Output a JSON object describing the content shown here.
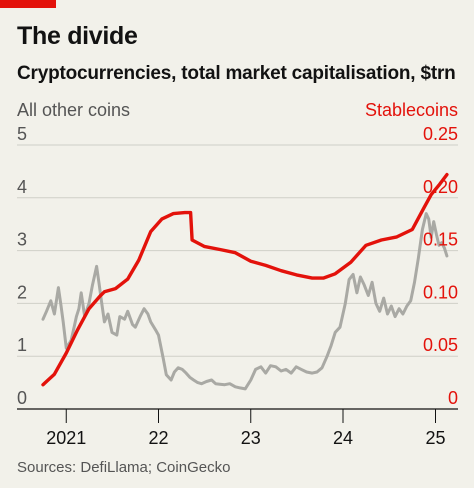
{
  "header": {
    "title": "The divide",
    "subtitle": "Cryptocurrencies, total market capitalisation, $trn"
  },
  "footer": {
    "source": "Sources: DefiLlama; CoinGecko"
  },
  "colors": {
    "stablecoins": "#e3120b",
    "other": "#a9a9a4",
    "flag": "#e3120b",
    "background": "#f2f1ea"
  },
  "chart_data": {
    "type": "line",
    "ylabel_left": "All other coins",
    "ylabel_right": "Stablecoins",
    "ylim_left": [
      0,
      5
    ],
    "ylim_right": [
      0,
      0.25
    ],
    "yticks_left": [
      "0",
      "1",
      "2",
      "3",
      "4",
      "5"
    ],
    "yticks_right": [
      "0",
      "0.05",
      "0.10",
      "0.15",
      "0.20",
      "0.25"
    ],
    "xlim": [
      "2020-10-01",
      "2025-03-31"
    ],
    "xticks": [
      {
        "date": "2021-01-01",
        "label": "2021"
      },
      {
        "date": "2022-01-01",
        "label": "22"
      },
      {
        "date": "2023-01-01",
        "label": "23"
      },
      {
        "date": "2024-01-01",
        "label": "24"
      },
      {
        "date": "2025-01-01",
        "label": "25"
      }
    ],
    "grid": true,
    "series": [
      {
        "name": "Stablecoins",
        "axis": "right",
        "values": [
          [
            "2020-10-01",
            0.023
          ],
          [
            "2020-11-15",
            0.033
          ],
          [
            "2021-01-01",
            0.053
          ],
          [
            "2021-02-15",
            0.075
          ],
          [
            "2021-04-01",
            0.095
          ],
          [
            "2021-05-15",
            0.107
          ],
          [
            "2021-06-01",
            0.111
          ],
          [
            "2021-07-15",
            0.114
          ],
          [
            "2021-09-01",
            0.123
          ],
          [
            "2021-10-15",
            0.141
          ],
          [
            "2021-12-01",
            0.168
          ],
          [
            "2022-01-15",
            0.18
          ],
          [
            "2022-03-01",
            0.185
          ],
          [
            "2022-04-15",
            0.186
          ],
          [
            "2022-05-08",
            0.186
          ],
          [
            "2022-05-14",
            0.16
          ],
          [
            "2022-07-01",
            0.154
          ],
          [
            "2022-09-01",
            0.151
          ],
          [
            "2022-11-01",
            0.148
          ],
          [
            "2023-01-01",
            0.14
          ],
          [
            "2023-03-01",
            0.136
          ],
          [
            "2023-05-01",
            0.131
          ],
          [
            "2023-07-01",
            0.127
          ],
          [
            "2023-09-01",
            0.124
          ],
          [
            "2023-10-15",
            0.124
          ],
          [
            "2023-12-01",
            0.128
          ],
          [
            "2024-02-01",
            0.139
          ],
          [
            "2024-04-01",
            0.155
          ],
          [
            "2024-06-01",
            0.16
          ],
          [
            "2024-08-01",
            0.163
          ],
          [
            "2024-10-01",
            0.17
          ],
          [
            "2024-11-15",
            0.19
          ],
          [
            "2024-12-15",
            0.203
          ],
          [
            "2025-01-15",
            0.212
          ],
          [
            "2025-02-15",
            0.222
          ]
        ]
      },
      {
        "name": "All other coins",
        "axis": "left",
        "values": [
          [
            "2020-10-01",
            1.7
          ],
          [
            "2020-10-15",
            1.85
          ],
          [
            "2020-11-01",
            2.05
          ],
          [
            "2020-11-15",
            1.8
          ],
          [
            "2020-12-01",
            2.3
          ],
          [
            "2020-12-10",
            2.0
          ],
          [
            "2020-12-20",
            1.65
          ],
          [
            "2021-01-01",
            1.15
          ],
          [
            "2021-01-20",
            1.3
          ],
          [
            "2021-02-01",
            1.55
          ],
          [
            "2021-02-10",
            1.75
          ],
          [
            "2021-02-20",
            1.9
          ],
          [
            "2021-03-01",
            2.2
          ],
          [
            "2021-03-15",
            1.75
          ],
          [
            "2021-04-01",
            2.0
          ],
          [
            "2021-04-15",
            2.35
          ],
          [
            "2021-05-01",
            2.7
          ],
          [
            "2021-05-10",
            2.4
          ],
          [
            "2021-05-20",
            2.05
          ],
          [
            "2021-06-01",
            1.65
          ],
          [
            "2021-06-15",
            1.8
          ],
          [
            "2021-07-01",
            1.45
          ],
          [
            "2021-07-20",
            1.4
          ],
          [
            "2021-08-01",
            1.75
          ],
          [
            "2021-08-20",
            1.7
          ],
          [
            "2021-09-01",
            1.85
          ],
          [
            "2021-09-20",
            1.6
          ],
          [
            "2021-10-01",
            1.55
          ],
          [
            "2021-10-20",
            1.75
          ],
          [
            "2021-11-05",
            1.9
          ],
          [
            "2021-11-20",
            1.8
          ],
          [
            "2021-12-01",
            1.65
          ],
          [
            "2021-12-20",
            1.5
          ],
          [
            "2022-01-01",
            1.4
          ],
          [
            "2022-01-20",
            0.95
          ],
          [
            "2022-02-01",
            0.65
          ],
          [
            "2022-02-20",
            0.55
          ],
          [
            "2022-03-05",
            0.7
          ],
          [
            "2022-03-20",
            0.78
          ],
          [
            "2022-04-05",
            0.75
          ],
          [
            "2022-04-20",
            0.68
          ],
          [
            "2022-05-05",
            0.6
          ],
          [
            "2022-05-20",
            0.55
          ],
          [
            "2022-06-05",
            0.5
          ],
          [
            "2022-06-20",
            0.48
          ],
          [
            "2022-07-10",
            0.52
          ],
          [
            "2022-07-30",
            0.55
          ],
          [
            "2022-08-15",
            0.48
          ],
          [
            "2022-09-01",
            0.47
          ],
          [
            "2022-09-20",
            0.46
          ],
          [
            "2022-10-10",
            0.48
          ],
          [
            "2022-11-01",
            0.42
          ],
          [
            "2022-11-20",
            0.4
          ],
          [
            "2022-12-10",
            0.38
          ],
          [
            "2023-01-01",
            0.55
          ],
          [
            "2023-01-20",
            0.75
          ],
          [
            "2023-02-10",
            0.8
          ],
          [
            "2023-03-01",
            0.68
          ],
          [
            "2023-03-20",
            0.82
          ],
          [
            "2023-04-10",
            0.8
          ],
          [
            "2023-05-01",
            0.72
          ],
          [
            "2023-05-20",
            0.75
          ],
          [
            "2023-06-10",
            0.68
          ],
          [
            "2023-06-30",
            0.8
          ],
          [
            "2023-07-20",
            0.75
          ],
          [
            "2023-08-10",
            0.7
          ],
          [
            "2023-09-01",
            0.68
          ],
          [
            "2023-09-20",
            0.7
          ],
          [
            "2023-10-10",
            0.78
          ],
          [
            "2023-10-30",
            1.0
          ],
          [
            "2023-11-15",
            1.2
          ],
          [
            "2023-12-01",
            1.45
          ],
          [
            "2023-12-20",
            1.55
          ],
          [
            "2024-01-10",
            2.0
          ],
          [
            "2024-01-25",
            2.45
          ],
          [
            "2024-02-10",
            2.55
          ],
          [
            "2024-02-25",
            2.2
          ],
          [
            "2024-03-10",
            2.5
          ],
          [
            "2024-03-25",
            2.35
          ],
          [
            "2024-04-10",
            2.15
          ],
          [
            "2024-04-25",
            2.4
          ],
          [
            "2024-05-10",
            2.0
          ],
          [
            "2024-05-25",
            1.85
          ],
          [
            "2024-06-10",
            2.1
          ],
          [
            "2024-06-25",
            1.8
          ],
          [
            "2024-07-10",
            1.95
          ],
          [
            "2024-07-25",
            1.75
          ],
          [
            "2024-08-10",
            1.9
          ],
          [
            "2024-08-25",
            1.8
          ],
          [
            "2024-09-10",
            1.95
          ],
          [
            "2024-09-25",
            2.05
          ],
          [
            "2024-10-10",
            2.4
          ],
          [
            "2024-10-25",
            2.85
          ],
          [
            "2024-11-10",
            3.4
          ],
          [
            "2024-11-25",
            3.7
          ],
          [
            "2024-12-05",
            3.6
          ],
          [
            "2024-12-15",
            3.25
          ],
          [
            "2024-12-25",
            3.55
          ],
          [
            "2025-01-05",
            3.3
          ],
          [
            "2025-01-15",
            3.1
          ],
          [
            "2025-01-25",
            3.15
          ],
          [
            "2025-02-05",
            3.05
          ],
          [
            "2025-02-15",
            2.9
          ]
        ]
      }
    ]
  }
}
